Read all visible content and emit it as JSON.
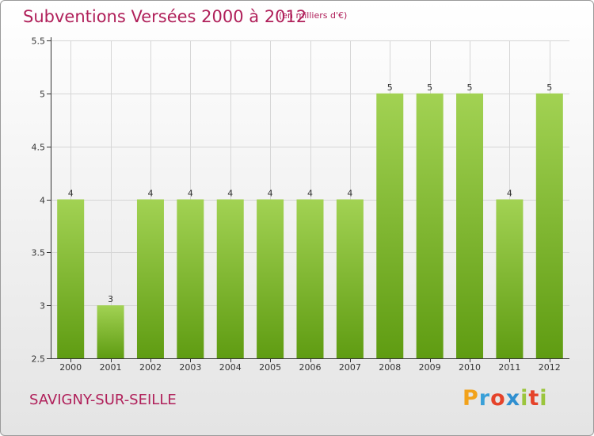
{
  "title": "Subventions Versées 2000 à 2012",
  "unit_note": "(en milliers d'€)",
  "commune": "SAVIGNY-SUR-SEILLE",
  "logo": {
    "text": "Proxiti",
    "letter_colors": [
      "#f2a21b",
      "#3aa0d8",
      "#e5432a",
      "#2f8fd0",
      "#9bc53d",
      "#e5432a",
      "#9bc53d"
    ]
  },
  "colors": {
    "title": "#b0205a",
    "bar_light": "#a2d253",
    "bar_dark": "#5f9c12",
    "axis": "#333333",
    "grid": "#d6d6d6"
  },
  "chart_data": {
    "type": "bar",
    "title": "Subventions Versées 2000 à 2012",
    "categories": [
      "2000",
      "2001",
      "2002",
      "2003",
      "2004",
      "2005",
      "2006",
      "2007",
      "2008",
      "2009",
      "2010",
      "2011",
      "2012"
    ],
    "values": [
      4,
      3,
      4,
      4,
      4,
      4,
      4,
      4,
      5,
      5,
      5,
      4,
      5
    ],
    "data_labels": [
      "4",
      "3",
      "4",
      "4",
      "4",
      "4",
      "4",
      "4",
      "5",
      "5",
      "5",
      "4",
      "5"
    ],
    "ylim": [
      2.5,
      5.5
    ],
    "yticks": [
      2.5,
      3,
      3.5,
      4,
      4.5,
      5,
      5.5
    ],
    "ytick_labels": [
      "2.5",
      "3",
      "3.5",
      "4",
      "4.5",
      "5",
      "5.5"
    ],
    "grid": true,
    "xlabel": "",
    "ylabel": ""
  }
}
